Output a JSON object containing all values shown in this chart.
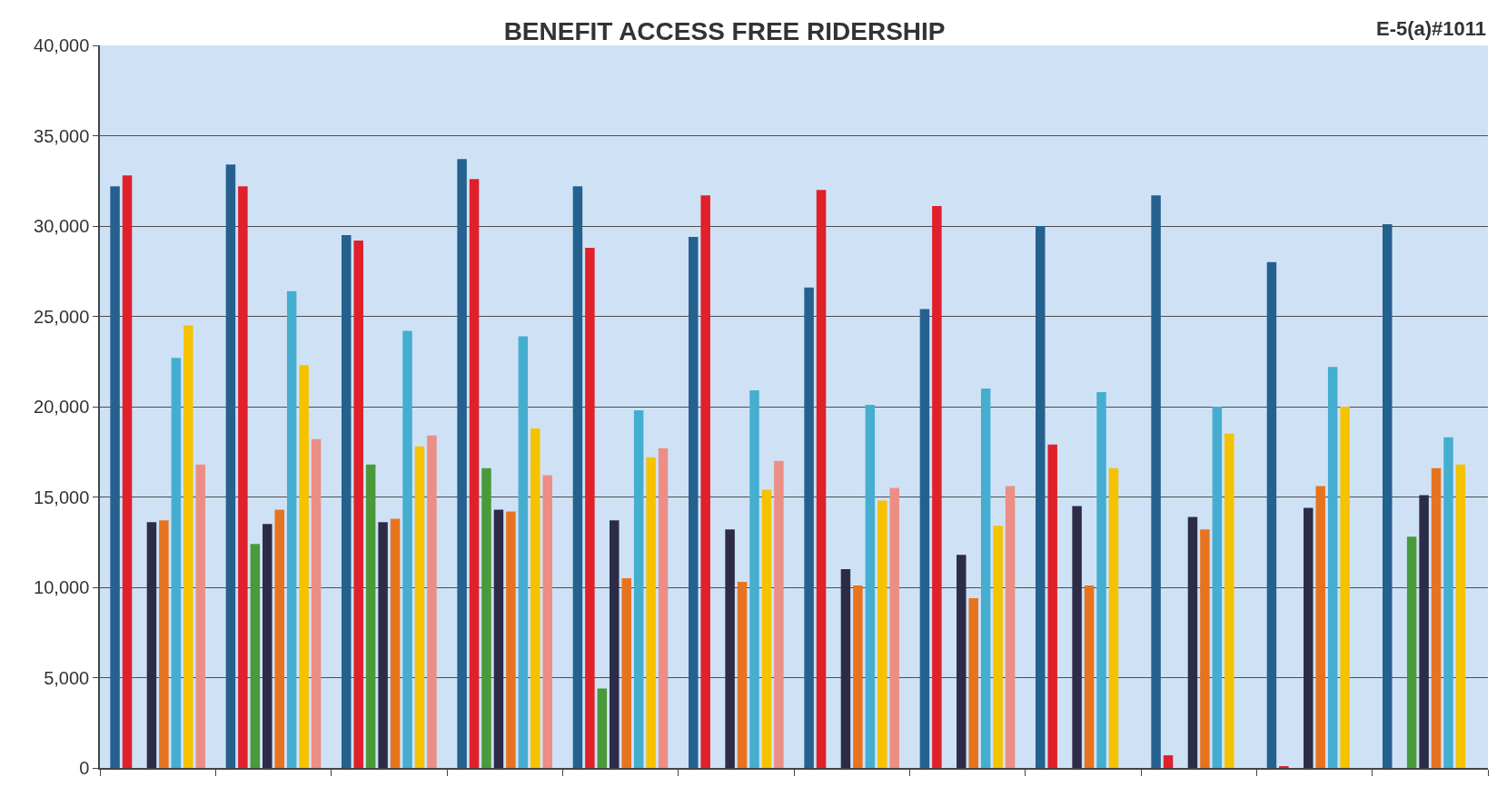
{
  "chart_data": {
    "type": "bar",
    "title": "BENEFIT ACCESS FREE RIDERSHIP",
    "annotations": [
      "E-5(a)#1011"
    ],
    "categories": [
      null,
      null,
      null,
      null,
      null,
      null,
      null,
      null,
      null,
      null,
      null,
      null
    ],
    "series": [
      {
        "color": "#24618f",
        "values": [
          32200,
          33400,
          29500,
          33700,
          32200,
          29400,
          26600,
          25400,
          30000,
          31700,
          28000,
          30100
        ]
      },
      {
        "color": "#e0202a",
        "values": [
          32800,
          32200,
          29200,
          32600,
          28800,
          31700,
          32000,
          31100,
          17900,
          700,
          100,
          null
        ]
      },
      {
        "color": "#4a9a3a",
        "values": [
          null,
          12400,
          16800,
          16600,
          4400,
          null,
          null,
          null,
          null,
          null,
          null,
          12800
        ]
      },
      {
        "color": "#2c2c48",
        "values": [
          13600,
          13500,
          13600,
          14300,
          13700,
          13200,
          11000,
          11800,
          14500,
          13900,
          14400,
          15100
        ]
      },
      {
        "color": "#e8731e",
        "values": [
          13700,
          14300,
          13800,
          14200,
          10500,
          10300,
          10100,
          9400,
          10100,
          13200,
          15600,
          16600
        ]
      },
      {
        "color": "#45aed0",
        "values": [
          22700,
          26400,
          24200,
          23900,
          19800,
          20900,
          20100,
          21000,
          20800,
          20000,
          22200,
          18300
        ]
      },
      {
        "color": "#f5c200",
        "values": [
          24500,
          22300,
          17800,
          18800,
          17200,
          15400,
          14800,
          13400,
          16600,
          18500,
          20000,
          16800
        ]
      },
      {
        "color": "#ec8e86",
        "values": [
          16800,
          18200,
          18400,
          16200,
          17700,
          17000,
          15500,
          15600,
          null,
          null,
          null,
          null
        ]
      }
    ],
    "ylim": [
      0,
      40000
    ],
    "yticks": [
      {
        "value": 0,
        "label": "0"
      },
      {
        "value": 5000,
        "label": "5,000"
      },
      {
        "value": 10000,
        "label": "10,000"
      },
      {
        "value": 15000,
        "label": "15,000"
      },
      {
        "value": 20000,
        "label": "20,000"
      },
      {
        "value": 25000,
        "label": "25,000"
      },
      {
        "value": 30000,
        "label": "30,000"
      },
      {
        "value": 35000,
        "label": "35,000"
      },
      {
        "value": 40000,
        "label": "40,000"
      }
    ],
    "grid": "y",
    "tick_labels": "y"
  }
}
